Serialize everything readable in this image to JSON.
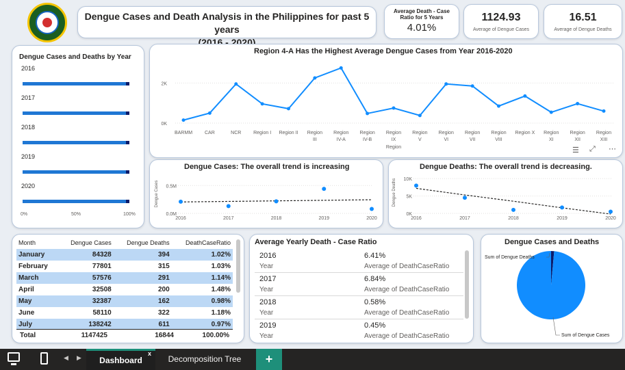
{
  "header": {
    "title_line1": "Dengue Cases and Death Analysis in the Philippines for past 5 years",
    "title_line2": "(2016 - 2020)",
    "logo_label": "Department of Health logo"
  },
  "kpis": {
    "ratio_title_1": "Average Death - Case",
    "ratio_title_2": "Ratio for 5 Years",
    "ratio_value": "4.01%",
    "avg_cases_value": "1124.93",
    "avg_cases_label": "Average of Dengue Cases",
    "avg_deaths_value": "16.51",
    "avg_deaths_label": "Average of Dengue Deaths"
  },
  "by_year": {
    "title": "Dengue Cases and Deaths by Year",
    "years": [
      "2016",
      "2017",
      "2018",
      "2019",
      "2020"
    ],
    "death_share_percent": [
      3.1,
      3.1,
      3.1,
      3.1,
      3.1
    ],
    "axis": [
      "0%",
      "50%",
      "100%"
    ]
  },
  "region_chart": {
    "title": "Region 4-A Has the Highest Average Dengue Cases from Year 2016-2020",
    "y_ticks": [
      "2K",
      "0K"
    ],
    "x_title": "Region",
    "labels": [
      [
        "BARMM",
        ""
      ],
      [
        "CAR",
        ""
      ],
      [
        "NCR",
        ""
      ],
      [
        "Region I",
        ""
      ],
      [
        "Region II",
        ""
      ],
      [
        "Region",
        "III"
      ],
      [
        "Region",
        "IV-A"
      ],
      [
        "Region",
        "IV-B"
      ],
      [
        "Region",
        "IX"
      ],
      [
        "Region",
        "V"
      ],
      [
        "Region",
        "VI"
      ],
      [
        "Region",
        "VII"
      ],
      [
        "Region",
        "VIII"
      ],
      [
        "Region X",
        ""
      ],
      [
        "Region",
        "XI"
      ],
      [
        "Region",
        "XII"
      ],
      [
        "Region",
        "XIII"
      ]
    ]
  },
  "cases_trend": {
    "title": "Dengue Cases: The overall trend is increasing",
    "y_label": "Dengue Cases",
    "y_ticks": [
      "0.5M",
      "0.0M"
    ],
    "x_ticks": [
      "2016",
      "2017",
      "2018",
      "2019",
      "2020"
    ]
  },
  "deaths_trend": {
    "title": "Dengue Deaths: The overall trend is decreasing.",
    "y_label": "Dengue Deaths",
    "y_ticks": [
      "10K",
      "5K",
      "0K"
    ],
    "x_ticks": [
      "2016",
      "2017",
      "2018",
      "2019",
      "2020"
    ]
  },
  "month_table": {
    "headers": [
      "Month",
      "Dengue Cases",
      "Dengue Deaths",
      "DeathCaseRatio"
    ],
    "rows": [
      [
        "January",
        "84328",
        "394",
        "1.02%"
      ],
      [
        "February",
        "77801",
        "315",
        "1.03%"
      ],
      [
        "March",
        "57576",
        "291",
        "1.14%"
      ],
      [
        "April",
        "32508",
        "200",
        "1.48%"
      ],
      [
        "May",
        "32387",
        "162",
        "0.98%"
      ],
      [
        "June",
        "58110",
        "322",
        "1.18%"
      ],
      [
        "July",
        "138242",
        "611",
        "0.97%"
      ]
    ],
    "total": [
      "Total",
      "1147425",
      "16844",
      "100.00%"
    ]
  },
  "ratio_panel": {
    "title": "Average Yearly Death - Case Ratio",
    "year_label": "Year",
    "value_label": "Average of DeathCaseRatio",
    "rows": [
      {
        "year": "2016",
        "value": "6.41%"
      },
      {
        "year": "2017",
        "value": "6.84%"
      },
      {
        "year": "2018",
        "value": "0.58%"
      },
      {
        "year": "2019",
        "value": "0.45%"
      }
    ]
  },
  "pie_panel": {
    "title": "Dengue Cases and Deaths",
    "label_deaths": "Sum of Dengue Deaths",
    "label_cases": "Sum of Dengue Cases"
  },
  "tabs": {
    "active": "Dashboard",
    "other": "Decomposition Tree",
    "close": "x",
    "add": "+"
  },
  "colors": {
    "accent_blue": "#118dff",
    "dark_blue": "#0b1c6b",
    "teal": "#1e8f7a"
  },
  "chart_data": [
    {
      "type": "line",
      "title": "Region 4-A Has the Highest Average Dengue Cases from Year 2016-2020",
      "xlabel": "Region",
      "ylabel": "",
      "categories": [
        "BARMM",
        "CAR",
        "NCR",
        "Region I",
        "Region II",
        "Region III",
        "Region IV-A",
        "Region IV-B",
        "Region IX",
        "Region V",
        "Region VI",
        "Region VII",
        "Region VIII",
        "Region X",
        "Region XI",
        "Region XII",
        "Region XIII"
      ],
      "values": [
        150,
        500,
        1950,
        960,
        720,
        2250,
        2750,
        480,
        750,
        380,
        1950,
        1850,
        850,
        1350,
        540,
        970,
        600
      ],
      "ylim": [
        0,
        3000
      ],
      "grid": true
    },
    {
      "type": "scatter",
      "title": "Dengue Cases: The overall trend is increasing",
      "xlabel": "",
      "ylabel": "Dengue Cases",
      "x": [
        2016,
        2017,
        2018,
        2019,
        2020
      ],
      "values": [
        211000,
        131000,
        216000,
        441000,
        80000
      ],
      "trend": [
        205000,
        215000,
        225000,
        235000,
        245000
      ],
      "ylim": [
        0,
        700000
      ]
    },
    {
      "type": "scatter",
      "title": "Dengue Deaths: The overall trend is decreasing.",
      "xlabel": "",
      "ylabel": "Dengue Deaths",
      "x": [
        2016,
        2017,
        2018,
        2019,
        2020
      ],
      "values": [
        8000,
        4500,
        1000,
        1700,
        500
      ],
      "trend": [
        7200,
        5300,
        3500,
        1600,
        -200
      ],
      "ylim": [
        0,
        12000
      ]
    },
    {
      "type": "pie",
      "title": "Dengue Cases and Deaths",
      "categories": [
        "Sum of Dengue Deaths",
        "Sum of Dengue Cases"
      ],
      "values": [
        16844,
        1147425
      ]
    }
  ]
}
